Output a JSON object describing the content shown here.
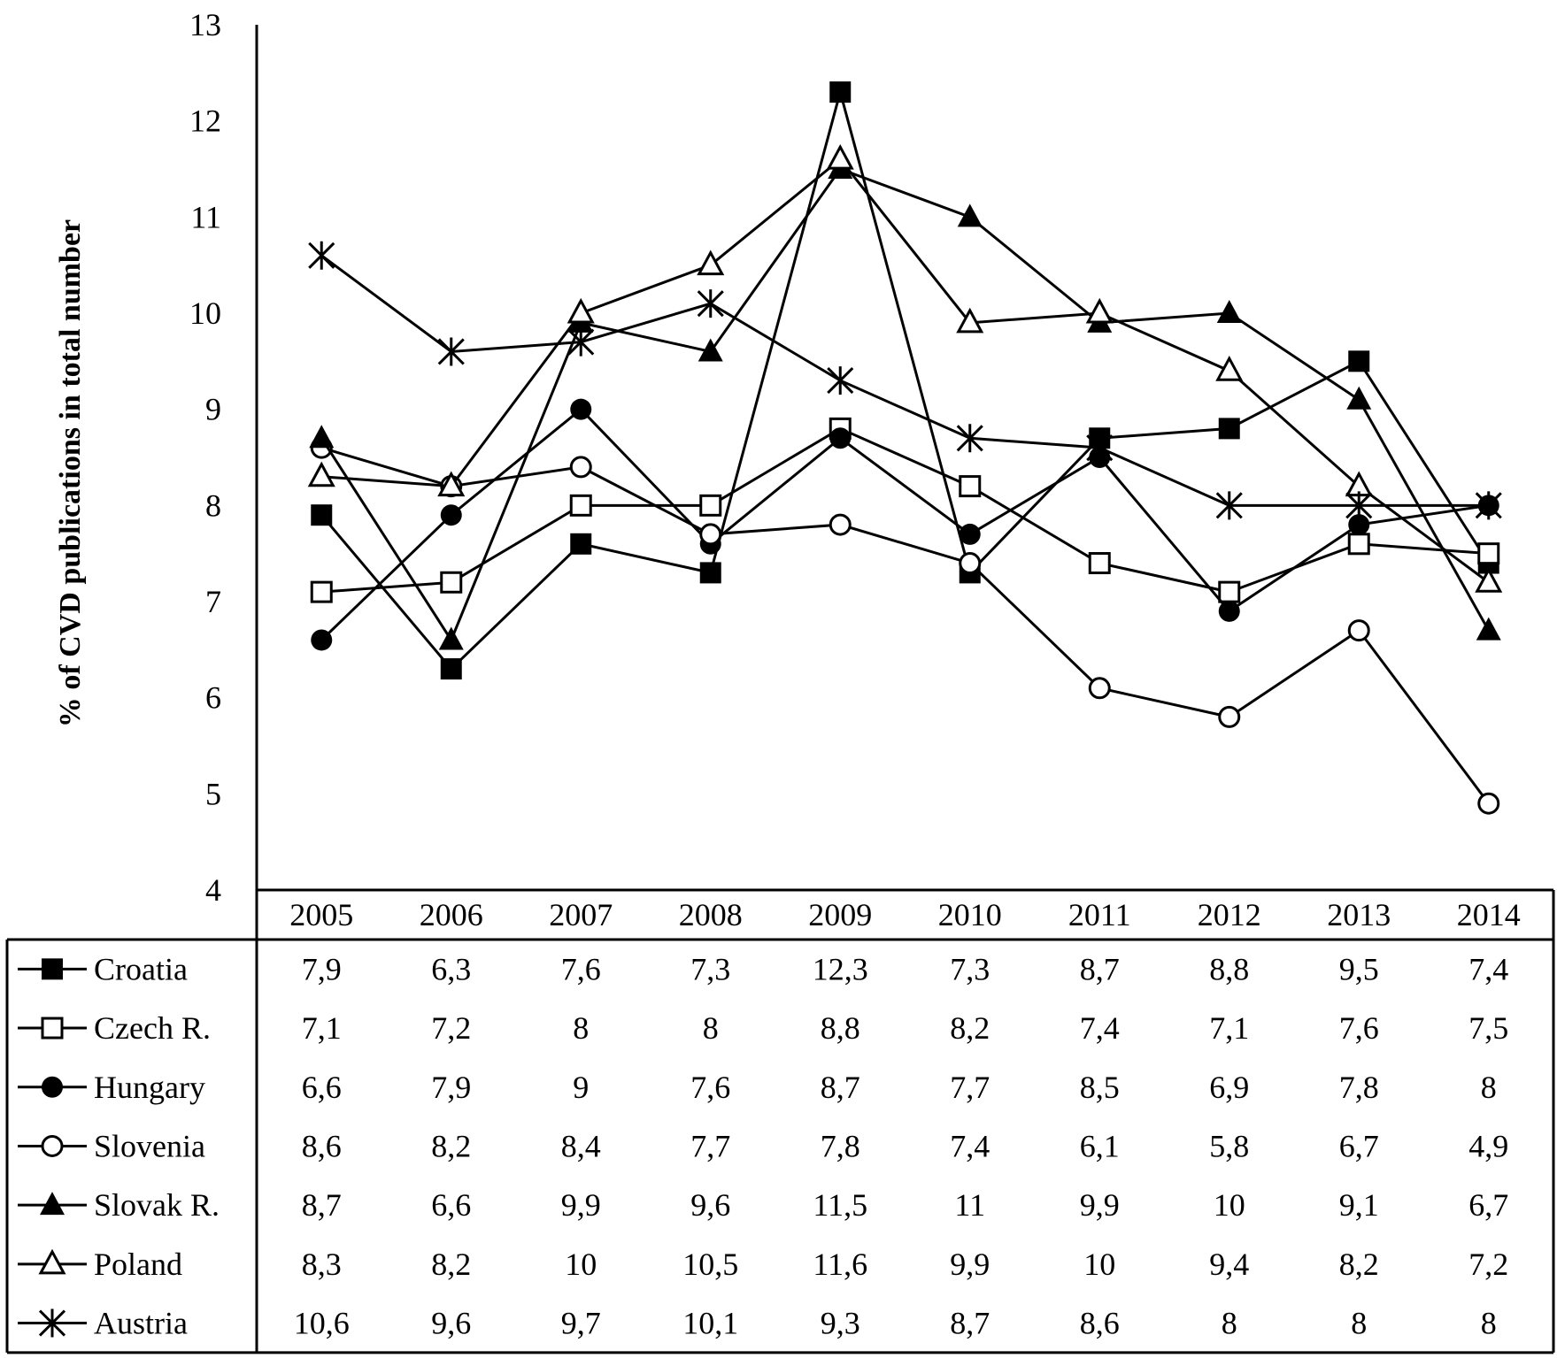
{
  "chart_data": {
    "type": "line",
    "title": "",
    "xlabel": "",
    "ylabel": "% of CVD publications in total number",
    "ylim": [
      4,
      13
    ],
    "yticks": [
      "4",
      "5",
      "6",
      "7",
      "8",
      "9",
      "10",
      "11",
      "12",
      "13"
    ],
    "grid": false,
    "legend": "data-table-below",
    "categories": [
      "2005",
      "2006",
      "2007",
      "2008",
      "2009",
      "2010",
      "2011",
      "2012",
      "2013",
      "2014"
    ],
    "series": [
      {
        "name": "Croatia",
        "marker": "filled-square",
        "values": [
          7.9,
          6.3,
          7.6,
          7.3,
          12.3,
          7.3,
          8.7,
          8.8,
          9.5,
          7.4
        ],
        "labels": [
          "7,9",
          "6,3",
          "7,6",
          "7,3",
          "12,3",
          "7,3",
          "8,7",
          "8,8",
          "9,5",
          "7,4"
        ]
      },
      {
        "name": "Czech R.",
        "marker": "open-square",
        "values": [
          7.1,
          7.2,
          8,
          8,
          8.8,
          8.2,
          7.4,
          7.1,
          7.6,
          7.5
        ],
        "labels": [
          "7,1",
          "7,2",
          "8",
          "8",
          "8,8",
          "8,2",
          "7,4",
          "7,1",
          "7,6",
          "7,5"
        ]
      },
      {
        "name": "Hungary",
        "marker": "filled-circle",
        "values": [
          6.6,
          7.9,
          9,
          7.6,
          8.7,
          7.7,
          8.5,
          6.9,
          7.8,
          8
        ],
        "labels": [
          "6,6",
          "7,9",
          "9",
          "7,6",
          "8,7",
          "7,7",
          "8,5",
          "6,9",
          "7,8",
          "8"
        ]
      },
      {
        "name": "Slovenia",
        "marker": "open-circle",
        "values": [
          8.6,
          8.2,
          8.4,
          7.7,
          7.8,
          7.4,
          6.1,
          5.8,
          6.7,
          4.9
        ],
        "labels": [
          "8,6",
          "8,2",
          "8,4",
          "7,7",
          "7,8",
          "7,4",
          "6,1",
          "5,8",
          "6,7",
          "4,9"
        ]
      },
      {
        "name": "Slovak R.",
        "marker": "filled-triangle",
        "values": [
          8.7,
          6.6,
          9.9,
          9.6,
          11.5,
          11,
          9.9,
          10,
          9.1,
          6.7
        ],
        "labels": [
          "8,7",
          "6,6",
          "9,9",
          "9,6",
          "11,5",
          "11",
          "9,9",
          "10",
          "9,1",
          "6,7"
        ]
      },
      {
        "name": "Poland",
        "marker": "open-triangle",
        "values": [
          8.3,
          8.2,
          10,
          10.5,
          11.6,
          9.9,
          10,
          9.4,
          8.2,
          7.2
        ],
        "labels": [
          "8,3",
          "8,2",
          "10",
          "10,5",
          "11,6",
          "9,9",
          "10",
          "9,4",
          "8,2",
          "7,2"
        ]
      },
      {
        "name": "Austria",
        "marker": "asterisk",
        "values": [
          10.6,
          9.6,
          9.7,
          10.1,
          9.3,
          8.7,
          8.6,
          8,
          8,
          8
        ],
        "labels": [
          "10,6",
          "9,6",
          "9,7",
          "10,1",
          "9,3",
          "8,7",
          "8,6",
          "8",
          "8",
          "8"
        ]
      }
    ]
  }
}
